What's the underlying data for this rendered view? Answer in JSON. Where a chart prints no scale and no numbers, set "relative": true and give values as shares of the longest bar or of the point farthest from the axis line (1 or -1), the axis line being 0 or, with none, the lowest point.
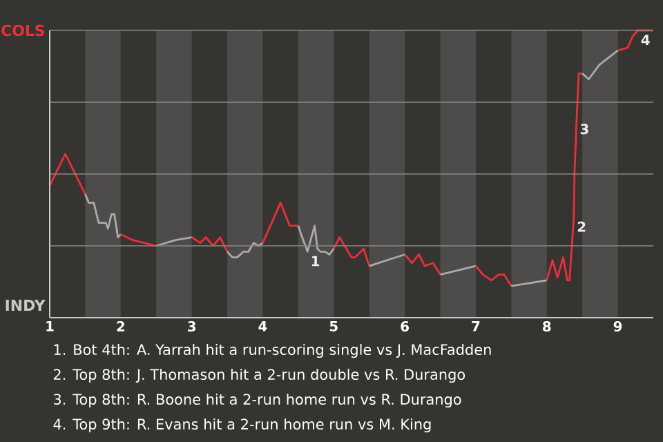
{
  "chart_data": {
    "type": "line",
    "relative": true,
    "xlim": [
      1,
      9.5
    ],
    "xticks": [
      1,
      2,
      3,
      4,
      5,
      6,
      7,
      8,
      9
    ],
    "grid": "y",
    "bands": [
      {
        "axis": "x",
        "from": 1.5,
        "to": 2,
        "color": "#4d4c4a"
      },
      {
        "axis": "x",
        "from": 2.5,
        "to": 3,
        "color": "#4d4c4a"
      },
      {
        "axis": "x",
        "from": 3.5,
        "to": 4,
        "color": "#4d4c4a"
      },
      {
        "axis": "x",
        "from": 4.5,
        "to": 5,
        "color": "#4d4c4a"
      },
      {
        "axis": "x",
        "from": 5.5,
        "to": 6,
        "color": "#4d4c4a"
      },
      {
        "axis": "x",
        "from": 6.5,
        "to": 7,
        "color": "#4d4c4a"
      },
      {
        "axis": "x",
        "from": 7.5,
        "to": 8,
        "color": "#4d4c4a"
      },
      {
        "axis": "x",
        "from": 8.5,
        "to": 9,
        "color": "#4d4c4a"
      }
    ],
    "series": [
      {
        "color": "#e8303c",
        "x": [
          1,
          1.22,
          1.5
        ],
        "values": [
          0.46,
          0.57,
          0.43
        ]
      },
      {
        "color": "#aaaaaa",
        "x": [
          1.5,
          1.55,
          1.62,
          1.69,
          1.79,
          1.82,
          1.87,
          1.91,
          1.96,
          2
        ],
        "values": [
          0.43,
          0.4,
          0.4,
          0.33,
          0.33,
          0.31,
          0.36,
          0.36,
          0.28,
          0.29
        ]
      },
      {
        "color": "#e8303c",
        "x": [
          2,
          2.17,
          2.5
        ],
        "values": [
          0.29,
          0.27,
          0.25
        ]
      },
      {
        "color": "#aaaaaa",
        "x": [
          2.5,
          2.77,
          3
        ],
        "values": [
          0.25,
          0.27,
          0.28
        ]
      },
      {
        "color": "#e8303c",
        "x": [
          3,
          3.12,
          3.2,
          3.3,
          3.4,
          3.5
        ],
        "values": [
          0.28,
          0.26,
          0.28,
          0.25,
          0.28,
          0.23
        ]
      },
      {
        "color": "#aaaaaa",
        "x": [
          3.5,
          3.57,
          3.64,
          3.73,
          3.8,
          3.87,
          3.94,
          4
        ],
        "values": [
          0.23,
          0.21,
          0.21,
          0.23,
          0.23,
          0.26,
          0.25,
          0.26
        ]
      },
      {
        "color": "#e8303c",
        "x": [
          4,
          4.25,
          4.38,
          4.5
        ],
        "values": [
          0.26,
          0.4,
          0.32,
          0.32
        ]
      },
      {
        "color": "#aaaaaa",
        "x": [
          4.5,
          4.54,
          4.63,
          4.73,
          4.77,
          4.81,
          4.87,
          4.94,
          5
        ],
        "values": [
          0.32,
          0.29,
          0.23,
          0.32,
          0.24,
          0.23,
          0.23,
          0.22,
          0.24
        ]
      },
      {
        "color": "#e8303c",
        "x": [
          5,
          5.08,
          5.25,
          5.3,
          5.42,
          5.5
        ],
        "values": [
          0.24,
          0.28,
          0.21,
          0.21,
          0.24,
          0.18
        ]
      },
      {
        "color": "#aaaaaa",
        "x": [
          5.5,
          6
        ],
        "values": [
          0.18,
          0.22
        ]
      },
      {
        "color": "#e8303c",
        "x": [
          6,
          6.1,
          6.2,
          6.28,
          6.4,
          6.5
        ],
        "values": [
          0.22,
          0.19,
          0.22,
          0.18,
          0.19,
          0.15
        ]
      },
      {
        "color": "#aaaaaa",
        "x": [
          6.5,
          7
        ],
        "values": [
          0.15,
          0.18
        ]
      },
      {
        "color": "#e8303c",
        "x": [
          7,
          7.1,
          7.22,
          7.32,
          7.4,
          7.5
        ],
        "values": [
          0.18,
          0.15,
          0.13,
          0.15,
          0.15,
          0.11
        ]
      },
      {
        "color": "#aaaaaa",
        "x": [
          7.5,
          8
        ],
        "values": [
          0.11,
          0.13
        ]
      },
      {
        "color": "#e8303c",
        "x": [
          8,
          8.08,
          8.15,
          8.23,
          8.29,
          8.32,
          8.38,
          8.39,
          8.42,
          8.45,
          8.5
        ],
        "values": [
          0.13,
          0.2,
          0.14,
          0.21,
          0.13,
          0.13,
          0.35,
          0.5,
          0.69,
          0.85,
          0.85
        ]
      },
      {
        "color": "#aaaaaa",
        "x": [
          8.5,
          8.59,
          8.74,
          9
        ],
        "values": [
          0.85,
          0.83,
          0.88,
          0.93
        ]
      },
      {
        "color": "#e8303c",
        "x": [
          9,
          9.14,
          9.21,
          9.28,
          9.5
        ],
        "values": [
          0.93,
          0.94,
          0.98,
          1,
          1
        ]
      }
    ],
    "annotations": [
      "COLS",
      "INDY",
      {
        "text": "1",
        "x": 4.63,
        "y": 0.23
      },
      {
        "text": "2",
        "x": 8.38,
        "y": 0.35
      },
      {
        "text": "3",
        "x": 8.42,
        "y": 0.69
      },
      {
        "text": "4",
        "x": 9.28,
        "y": 1
      },
      "1. Bot 4th: A. Yarrah hit a run-scoring single vs J. MacFadden",
      "2. Top 8th: J. Thomason hit a 2-run double vs R. Durango",
      "3. Top 8th: R. Boone hit a 2-run home run vs R. Durango",
      "4. Top 9th: R. Evans hit a 2-run home run vs M. King"
    ]
  }
}
